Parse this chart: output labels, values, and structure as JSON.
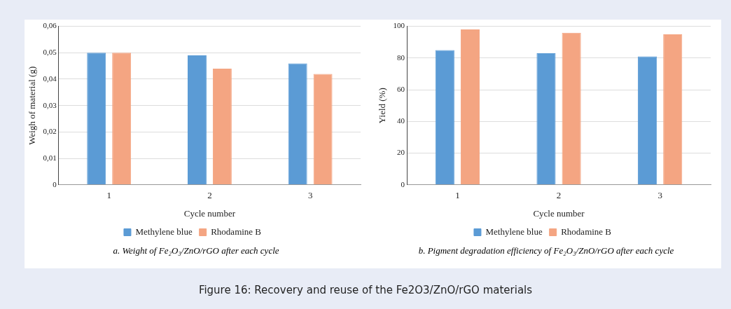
{
  "chart_data": [
    {
      "type": "bar",
      "categories": [
        "1",
        "2",
        "3"
      ],
      "xlabel": "Cycle number",
      "ylabel": "Weigh of material (g)",
      "ylim": [
        0,
        0.06
      ],
      "yticks": [
        {
          "value": 0,
          "label": "0"
        },
        {
          "value": 0.01,
          "label": "0,01"
        },
        {
          "value": 0.02,
          "label": "0,02"
        },
        {
          "value": 0.03,
          "label": "0,03"
        },
        {
          "value": 0.04,
          "label": "0,04"
        },
        {
          "value": 0.05,
          "label": "0,05"
        },
        {
          "value": 0.06,
          "label": "0,06"
        }
      ],
      "grid": "y",
      "legend": "bottom",
      "series": [
        {
          "name": "Methylene blue",
          "color": "#5b9bd5",
          "values": [
            0.05,
            0.049,
            0.046
          ]
        },
        {
          "name": "Rhodamine B",
          "color": "#f4a582",
          "values": [
            0.05,
            0.044,
            0.042
          ]
        }
      ],
      "annotations": [
        "a. Weight of Fe₂O₃/ZnO/rGO after each cycle",
        "Figure 16: Recovery and reuse of the Fe2O3/ZnO/rGO materials"
      ]
    },
    {
      "type": "bar",
      "categories": [
        "1",
        "2",
        "3"
      ],
      "xlabel": "Cycle number",
      "ylabel": "Yield (%)",
      "ylim": [
        0,
        100
      ],
      "yticks": [
        0,
        20,
        40,
        60,
        80,
        100
      ],
      "grid": "y",
      "legend": "bottom",
      "series": [
        {
          "name": "Methylene blue",
          "color": "#5b9bd5",
          "values": [
            85,
            83,
            81
          ]
        },
        {
          "name": "Rhodamine B",
          "color": "#f4a582",
          "values": [
            98,
            96,
            95
          ]
        }
      ],
      "annotations": [
        "b. Pigment degradation efficiency of Fe₂O₃/ZnO/rGO after each cycle"
      ]
    }
  ]
}
